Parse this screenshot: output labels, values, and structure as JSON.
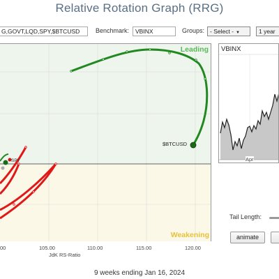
{
  "title": "Relative Rotation Graph (RRG)",
  "toolbar": {
    "symbols_value": "G,GOVT,LQD,SPY,$BTCUSD",
    "benchmark_label": "Benchmark:",
    "benchmark_value": "VBINX",
    "groups_label": "Groups:",
    "groups_value": "- Select -",
    "period_value": "1 year"
  },
  "graph": {
    "quadrant_top_right": "Leading",
    "quadrant_bottom_right": "Weakening",
    "series_label_btc": "$BTCUSD",
    "series_label_spy": "SPY",
    "colors": {
      "leading_bg": "#eef5ec",
      "weakening_bg": "#fbf8e8",
      "btc_tail": "#228822",
      "red_tail": "#e01818"
    },
    "x_axis": {
      "ticks": [
        "00",
        "105.00",
        "110.00",
        "115.00",
        "120.00"
      ],
      "label": "JdK RS-Ratio"
    }
  },
  "side_chart": {
    "title": "VBINX",
    "x_tick": "Apr"
  },
  "controls": {
    "tail_length_label": "Tail Length:",
    "animate_label": "animate"
  },
  "footer": "9 weeks ending Jan 16, 2024"
}
